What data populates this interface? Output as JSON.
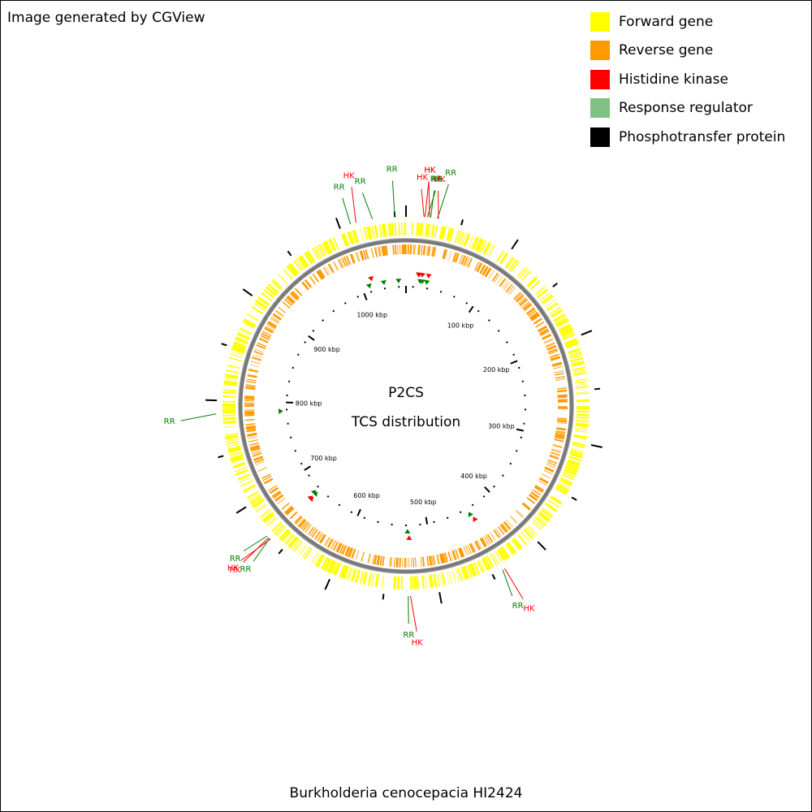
{
  "header": {
    "watermark": "Image generated by CGView"
  },
  "legend": [
    {
      "label": "Forward gene",
      "color": "#FFFF00"
    },
    {
      "label": "Reverse gene",
      "color": "#FF9900"
    },
    {
      "label": "Histidine kinase",
      "color": "#FF0000"
    },
    {
      "label": "Response regulator",
      "color": "#80C080"
    },
    {
      "label": "Phosphotransfer protein",
      "color": "#000000"
    }
  ],
  "map": {
    "title": "P2CS",
    "subtitle": "TCS distribution",
    "organism": "Burkholderia cenocepacia HI2424",
    "genome_length_kbp": 1060,
    "tick_labels": [
      "100 kbp",
      "200 kbp",
      "300 kbp",
      "400 kbp",
      "500 kbp",
      "600 kbp",
      "700 kbp",
      "800 kbp",
      "900 kbp",
      "1000 kbp"
    ],
    "tcs_labels": [
      {
        "text": "HK",
        "color": "#FF0000",
        "kbp": 16
      },
      {
        "text": "HK",
        "color": "#FF0000",
        "kbp": 17
      },
      {
        "text": "RR",
        "color": "#008000",
        "kbp": 19
      },
      {
        "text": "HK",
        "color": "#FF0000",
        "kbp": 21
      },
      {
        "text": "RR",
        "color": "#008000",
        "kbp": 22
      },
      {
        "text": "RR",
        "color": "#008000",
        "kbp": 28
      },
      {
        "text": "HK",
        "color": "#FF0000",
        "kbp": 29
      },
      {
        "text": "HK",
        "color": "#FF0000",
        "kbp": 438
      },
      {
        "text": "RR",
        "color": "#008000",
        "kbp": 440
      },
      {
        "text": "HK",
        "color": "#FF0000",
        "kbp": 526
      },
      {
        "text": "RR",
        "color": "#008000",
        "kbp": 528
      },
      {
        "text": "HK",
        "color": "#FF0000",
        "kbp": 664
      },
      {
        "text": "RR",
        "color": "#008000",
        "kbp": 665
      },
      {
        "text": "HK",
        "color": "#FF0000",
        "kbp": 666
      },
      {
        "text": "RR",
        "color": "#008000",
        "kbp": 668
      },
      {
        "text": "RR",
        "color": "#008000",
        "kbp": 788
      },
      {
        "text": "RR",
        "color": "#008000",
        "kbp": 1010
      },
      {
        "text": "HK",
        "color": "#FF0000",
        "kbp": 1015
      },
      {
        "text": "RR",
        "color": "#008000",
        "kbp": 1030
      },
      {
        "text": "RR",
        "color": "#008000",
        "kbp": 1050
      }
    ]
  }
}
